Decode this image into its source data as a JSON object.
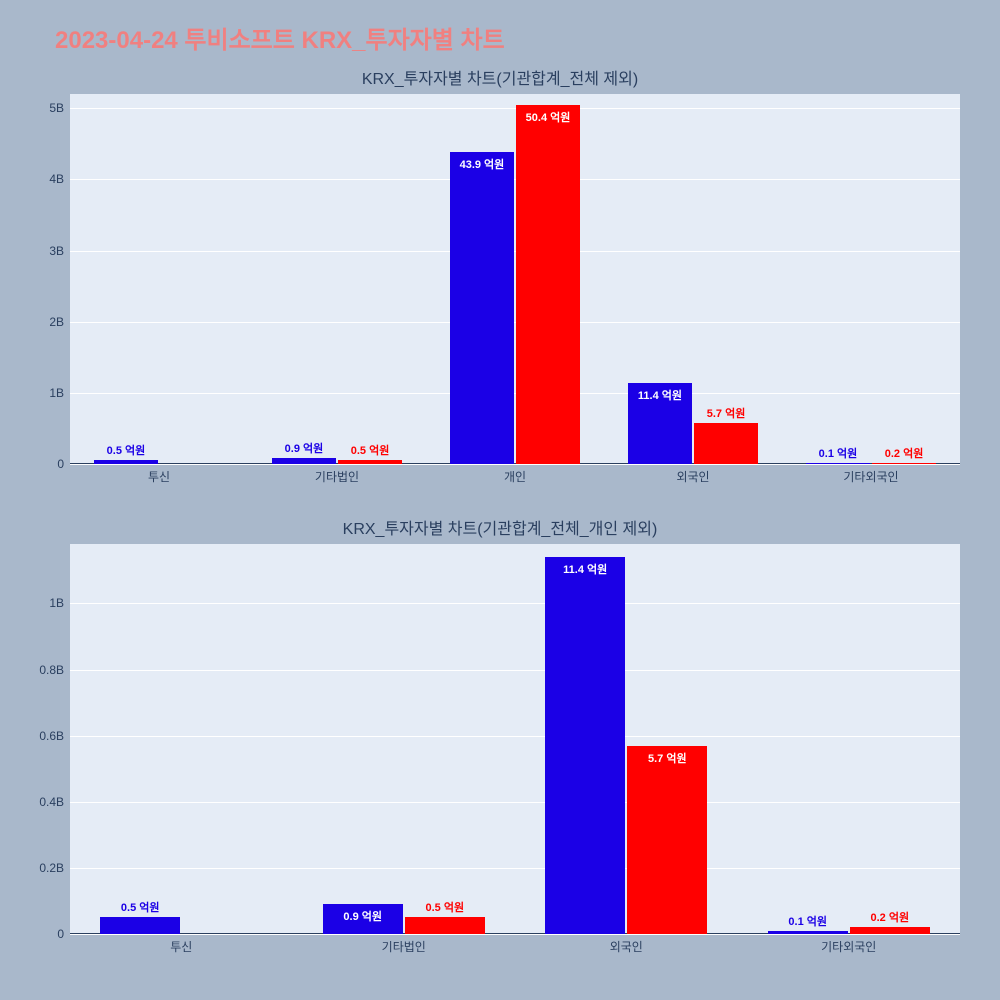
{
  "page_title": "2023-04-24 투비소프트 KRX_투자자별 차트",
  "colors": {
    "background": "#a9b8cb",
    "plot_bg": "#e5ecf6",
    "grid": "#ffffff",
    "title": "#f08080",
    "text": "#2a3f5f",
    "series_a": "#1b00e6",
    "series_b": "#ff0000"
  },
  "title_fontsize": 24,
  "chart_title_fontsize": 16,
  "axis_fontsize": 12,
  "bar_label_fontsize": 11,
  "chart1": {
    "title": "KRX_투자자별 차트(기관합계_전체 제외)",
    "ymax": 5200000000,
    "yticks": [
      {
        "v": 0,
        "label": "0"
      },
      {
        "v": 1000000000,
        "label": "1B"
      },
      {
        "v": 2000000000,
        "label": "2B"
      },
      {
        "v": 3000000000,
        "label": "3B"
      },
      {
        "v": 4000000000,
        "label": "4B"
      },
      {
        "v": 5000000000,
        "label": "5B"
      }
    ],
    "categories": [
      "투신",
      "기타법인",
      "개인",
      "외국인",
      "기타외국인"
    ],
    "series": [
      {
        "color_key": "series_a",
        "values": [
          50000000,
          90000000,
          4390000000,
          1140000000,
          10000000
        ],
        "labels": [
          "0.5 억원",
          "0.9 억원",
          "43.9 억원",
          "11.4 억원",
          "0.1 억원"
        ],
        "inside": [
          false,
          false,
          true,
          true,
          false
        ]
      },
      {
        "color_key": "series_b",
        "values": [
          0,
          50000000,
          5040000000,
          570000000,
          20000000
        ],
        "labels": [
          "",
          "0.5 억원",
          "50.4 억원",
          "5.7 억원",
          "0.2 억원"
        ],
        "inside": [
          false,
          false,
          true,
          false,
          false
        ]
      }
    ]
  },
  "chart2": {
    "title": "KRX_투자자별 차트(기관합계_전체_개인 제외)",
    "ymax": 1180000000,
    "yticks": [
      {
        "v": 0,
        "label": "0"
      },
      {
        "v": 200000000,
        "label": "0.2B"
      },
      {
        "v": 400000000,
        "label": "0.4B"
      },
      {
        "v": 600000000,
        "label": "0.6B"
      },
      {
        "v": 800000000,
        "label": "0.8B"
      },
      {
        "v": 1000000000,
        "label": "1B"
      }
    ],
    "categories": [
      "투신",
      "기타법인",
      "외국인",
      "기타외국인"
    ],
    "series": [
      {
        "color_key": "series_a",
        "values": [
          50000000,
          90000000,
          1140000000,
          10000000
        ],
        "labels": [
          "0.5 억원",
          "0.9 억원",
          "11.4 억원",
          "0.1 억원"
        ],
        "inside": [
          false,
          true,
          true,
          false
        ]
      },
      {
        "color_key": "series_b",
        "values": [
          0,
          50000000,
          570000000,
          20000000
        ],
        "labels": [
          "",
          "0.5 억원",
          "5.7 억원",
          "0.2 억원"
        ],
        "inside": [
          false,
          false,
          true,
          false
        ]
      }
    ]
  }
}
